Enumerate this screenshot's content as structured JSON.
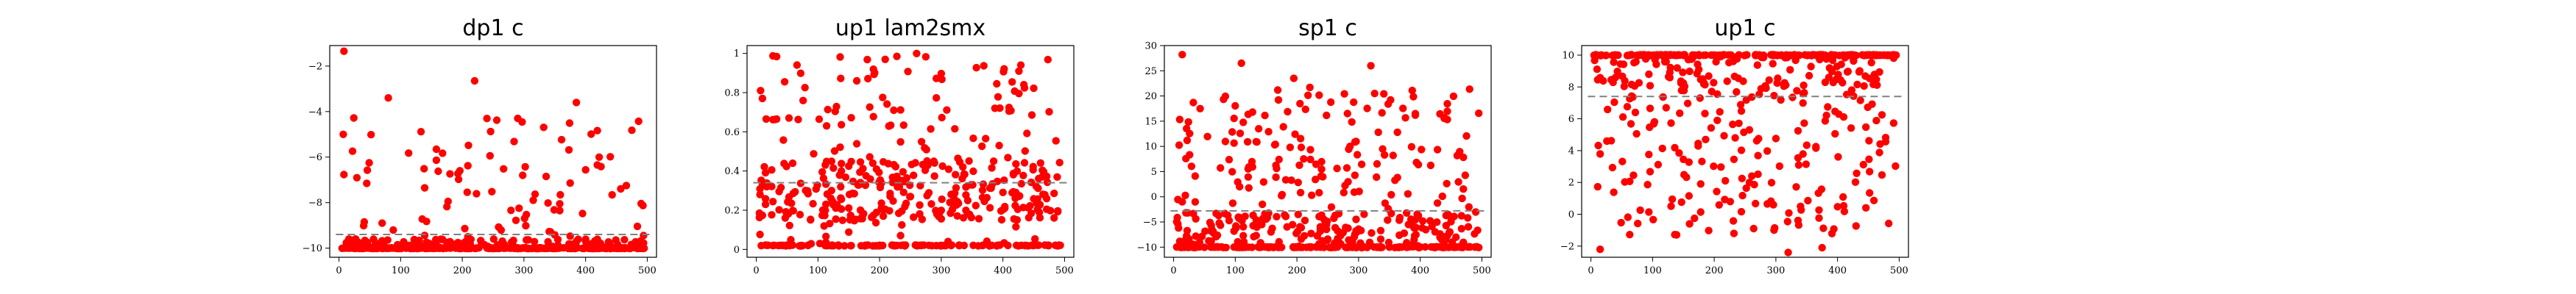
{
  "page": {
    "background": "#ffffff"
  },
  "chart_data": [
    {
      "type": "scatter",
      "title": "dp1 c",
      "xlabel": "",
      "ylabel": "",
      "xlim": [
        -15,
        515
      ],
      "ylim": [
        -10.4,
        -1.1
      ],
      "xticks": [
        0,
        100,
        200,
        300,
        400,
        500
      ],
      "yticks": [
        -10,
        -8,
        -6,
        -4,
        -2
      ],
      "grid": false,
      "legend": "none",
      "series_color": "#ff0000",
      "mean_line": -9.4,
      "n": 500,
      "seed": 11,
      "dist": {
        "kind": "floor",
        "floor": -10,
        "p_floor": 0.62,
        "band": [
          -10,
          -9.6
        ],
        "p_band": 0.18,
        "spread": [
          -9.6,
          -4.2
        ]
      },
      "highlights": [
        {
          "x": 8,
          "y": -1.35
        },
        {
          "x": 80,
          "y": -3.4
        },
        {
          "x": 220,
          "y": -2.65
        },
        {
          "x": 385,
          "y": -3.6
        },
        {
          "x": 290,
          "y": -4.3
        }
      ]
    },
    {
      "type": "scatter",
      "title": "up1 lam2smx",
      "xlabel": "",
      "ylabel": "",
      "xlim": [
        -15,
        515
      ],
      "ylim": [
        -0.04,
        1.04
      ],
      "xticks": [
        0,
        100,
        200,
        300,
        400,
        500
      ],
      "yticks": [
        0.0,
        0.2,
        0.4,
        0.6,
        0.8,
        1.0
      ],
      "grid": false,
      "legend": "none",
      "series_color": "#ff0000",
      "mean_line": 0.34,
      "n": 500,
      "seed": 22,
      "dist": {
        "kind": "floor",
        "floor": 0.02,
        "p_floor": 0.22,
        "band": [
          0.15,
          0.45
        ],
        "p_band": 0.45,
        "spread": [
          0.02,
          1.0
        ]
      },
      "highlights": []
    },
    {
      "type": "scatter",
      "title": "sp1 c",
      "xlabel": "",
      "ylabel": "",
      "xlim": [
        -15,
        515
      ],
      "ylim": [
        -12,
        30
      ],
      "xticks": [
        0,
        100,
        200,
        300,
        400,
        500
      ],
      "yticks": [
        -10,
        -5,
        0,
        5,
        10,
        15,
        20,
        25,
        30
      ],
      "grid": false,
      "legend": "none",
      "series_color": "#ff0000",
      "mean_line": -2.8,
      "n": 500,
      "seed": 33,
      "dist": {
        "kind": "floor",
        "floor": -10,
        "p_floor": 0.3,
        "band": [
          -10,
          -3
        ],
        "p_band": 0.38,
        "spread": [
          -5,
          22
        ]
      },
      "highlights": [
        {
          "x": 14,
          "y": 28.2
        },
        {
          "x": 110,
          "y": 26.5
        },
        {
          "x": 320,
          "y": 26.0
        },
        {
          "x": 195,
          "y": 23.5
        }
      ]
    },
    {
      "type": "scatter",
      "title": "up1 c",
      "xlabel": "",
      "ylabel": "",
      "xlim": [
        -15,
        515
      ],
      "ylim": [
        -2.7,
        10.6
      ],
      "xticks": [
        0,
        100,
        200,
        300,
        400,
        500
      ],
      "yticks": [
        -2,
        0,
        2,
        4,
        6,
        8,
        10
      ],
      "grid": false,
      "legend": "none",
      "series_color": "#ff0000",
      "mean_line": 7.4,
      "n": 500,
      "seed": 44,
      "dist": {
        "kind": "ceil",
        "floor": 10,
        "p_floor": 0.42,
        "band": [
          8,
          10
        ],
        "p_band": 0.2,
        "spread": [
          -1.5,
          8
        ]
      },
      "highlights": [
        {
          "x": 15,
          "y": -2.2
        },
        {
          "x": 320,
          "y": -2.4
        },
        {
          "x": 375,
          "y": -2.1
        }
      ]
    }
  ]
}
